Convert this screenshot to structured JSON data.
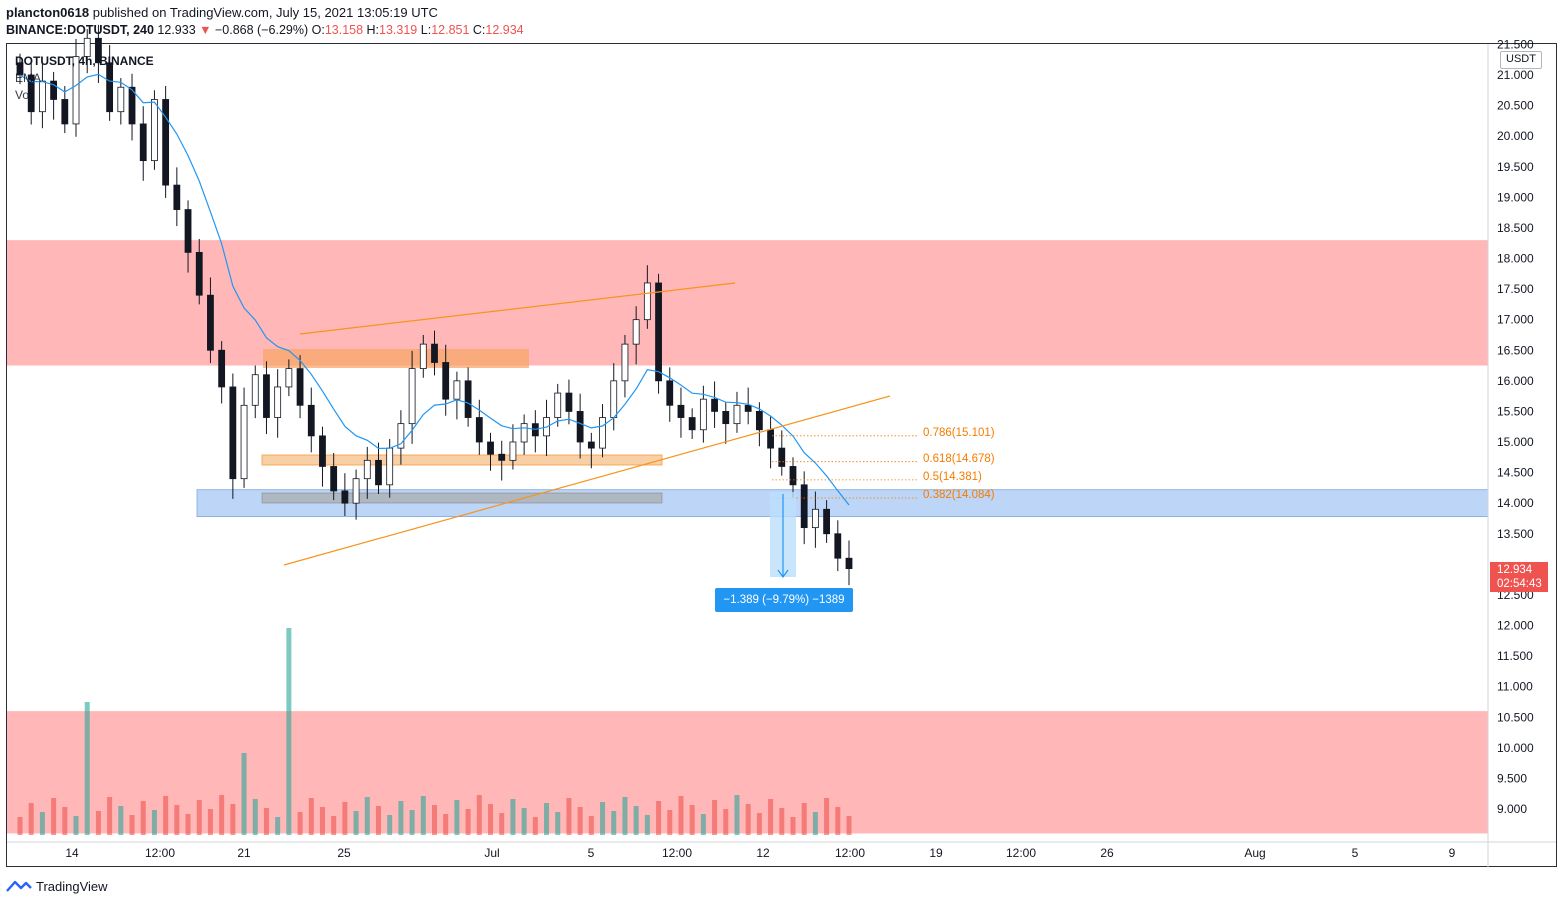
{
  "header": {
    "author": "plancton0618",
    "published_text": "published on TradingView.com, July 15, 2021 13:05:19 UTC",
    "symbol_line": "BINANCE:DOTUSDT, 240",
    "last": "12.933",
    "arrow": "▼",
    "change": "−0.868 (−6.29%)",
    "o_label": "O:",
    "o_value": "13.158",
    "h_label": "H:",
    "h_value": "13.319",
    "l_label": "L:",
    "l_value": "12.851",
    "c_label": "C:",
    "c_value": "12.934"
  },
  "legend": {
    "symbol": "DOTUSDT, 4h, BINANCE",
    "ema": "EMA",
    "vol": "Vol"
  },
  "price_axis": {
    "unit": "USDT",
    "labels": [
      "21.500",
      "21.000",
      "20.500",
      "20.000",
      "19.500",
      "19.000",
      "18.500",
      "18.000",
      "17.500",
      "17.000",
      "16.500",
      "16.000",
      "15.500",
      "15.000",
      "14.500",
      "14.000",
      "13.500",
      "12.934",
      "12.500",
      "12.000",
      "11.500",
      "11.000",
      "10.500",
      "10.000",
      "9.500",
      "9.000"
    ],
    "last_price": "12.934",
    "countdown": "02:54:43"
  },
  "time_axis": {
    "labels": [
      "14",
      "12:00",
      "21",
      "25",
      "Jul",
      "5",
      "12:00",
      "12",
      "12:00",
      "19",
      "12:00",
      "26",
      "Aug",
      "5",
      "9"
    ]
  },
  "fib_levels": [
    {
      "label": "0.786(15.101)",
      "value": 15.101
    },
    {
      "label": "0.618(14.678)",
      "value": 14.678
    },
    {
      "label": "0.5(14.381)",
      "value": 14.381
    },
    {
      "label": "0.382(14.084)",
      "value": 14.084
    }
  ],
  "measure": {
    "label": "−1.389 (−9.79%) −1389"
  },
  "footer": {
    "brand": "TradingView"
  },
  "chart_data": {
    "type": "candlestick",
    "symbol": "DOTUSDT",
    "timeframe": "4h",
    "exchange": "BINANCE",
    "ylim": [
      8.6,
      21.6
    ],
    "zones": [
      {
        "name": "resistance",
        "from": 16.25,
        "to": 18.3,
        "color": "#ffb3b3"
      },
      {
        "name": "support",
        "from": 13.78,
        "to": 14.22,
        "color": "#b9d3f7"
      },
      {
        "name": "lower",
        "from": 8.6,
        "to": 10.6,
        "color": "#ffb3b3"
      }
    ],
    "close_series_approx": [
      21.0,
      20.4,
      20.9,
      20.6,
      20.2,
      21.3,
      21.6,
      21.2,
      20.4,
      20.8,
      20.2,
      19.6,
      20.6,
      19.2,
      18.8,
      18.1,
      17.4,
      16.5,
      15.9,
      14.4,
      15.6,
      16.1,
      15.4,
      15.9,
      16.2,
      15.6,
      15.1,
      14.6,
      14.2,
      14.0,
      14.4,
      14.7,
      14.3,
      14.9,
      15.3,
      16.2,
      16.6,
      16.3,
      15.7,
      16.0,
      15.4,
      15.0,
      14.8,
      14.7,
      15.0,
      15.3,
      15.1,
      15.4,
      15.8,
      15.5,
      15.0,
      14.9,
      15.4,
      16.0,
      16.6,
      17.0,
      17.6,
      16.0,
      15.6,
      15.4,
      15.2,
      15.7,
      15.5,
      15.3,
      15.6,
      15.5,
      15.2,
      14.9,
      14.6,
      14.3,
      13.6,
      13.9,
      13.5,
      13.1,
      12.93
    ],
    "ema_color": "#2196f3",
    "colors": {
      "up": "#26a69a",
      "down": "#ef5350",
      "accent": "#2196f3",
      "fib": "#f57c00",
      "trend": "#f7941d"
    }
  }
}
